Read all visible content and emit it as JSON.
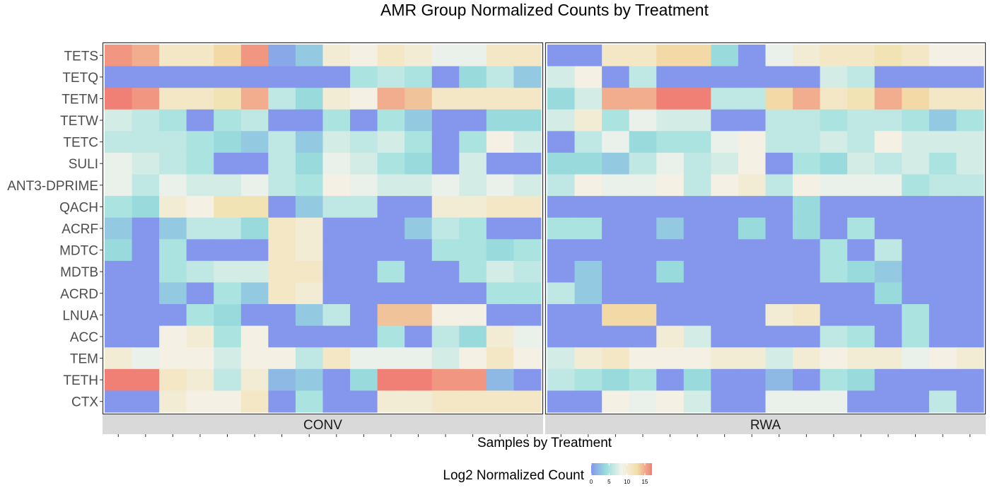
{
  "chart_data": {
    "type": "heatmap",
    "title": "AMR Group Normalized Counts by Treatment",
    "xlabel": "Samples by Treatment",
    "ylabel": "",
    "legend": {
      "title": "Log2 Normalized Count",
      "ticks": [
        0,
        5,
        10,
        15
      ],
      "range": [
        0,
        17
      ],
      "colors": [
        "#8497EC",
        "#9ADFDC",
        "#F4F3EC",
        "#F2DFA9",
        "#F08075"
      ],
      "placement": "bottom"
    },
    "facets": [
      {
        "name": "CONV",
        "columns": 16,
        "rows": [
          "TETS",
          "TETQ",
          "TETM",
          "TETW",
          "TETC",
          "SULI",
          "ANT3-DPRIME",
          "QACH",
          "ACRF",
          "MDTC",
          "MDTB",
          "ACRD",
          "LNUA",
          "ACC",
          "TEM",
          "TETH",
          "CTX"
        ],
        "values": [
          [
            16,
            15,
            11,
            11,
            13,
            16,
            1,
            3,
            10,
            9,
            11,
            10,
            8,
            8,
            11,
            11
          ],
          [
            0,
            0,
            0,
            0,
            0,
            0,
            0,
            0,
            0,
            5,
            6,
            5,
            0,
            4,
            6,
            3
          ],
          [
            17,
            16,
            11,
            11,
            12,
            15,
            6,
            4,
            10,
            9,
            15,
            14,
            11,
            11,
            11,
            11
          ],
          [
            7,
            6,
            5,
            0,
            5,
            6,
            0,
            0,
            5,
            0,
            5,
            3,
            0,
            0,
            4,
            4
          ],
          [
            6,
            6,
            6,
            5,
            4,
            3,
            6,
            3,
            7,
            6,
            7,
            5,
            0,
            5,
            9,
            7
          ],
          [
            8,
            7,
            6,
            5,
            0,
            0,
            6,
            4,
            8,
            7,
            5,
            4,
            0,
            7,
            0,
            0
          ],
          [
            8,
            6,
            8,
            7,
            7,
            8,
            6,
            5,
            9,
            8,
            7,
            7,
            8,
            7,
            8,
            7
          ],
          [
            5,
            4,
            10,
            9,
            12,
            12,
            0,
            3,
            6,
            6,
            0,
            0,
            10,
            10,
            11,
            11
          ],
          [
            3,
            0,
            3,
            6,
            6,
            4,
            11,
            10,
            0,
            0,
            0,
            3,
            6,
            5,
            0,
            0
          ],
          [
            4,
            0,
            5,
            0,
            0,
            0,
            11,
            10,
            0,
            0,
            0,
            0,
            5,
            5,
            4,
            5
          ],
          [
            0,
            0,
            5,
            6,
            7,
            7,
            11,
            11,
            0,
            0,
            5,
            0,
            0,
            5,
            7,
            6
          ],
          [
            0,
            0,
            3,
            0,
            5,
            3,
            11,
            10,
            0,
            0,
            0,
            0,
            0,
            0,
            5,
            5
          ],
          [
            0,
            0,
            0,
            5,
            4,
            0,
            0,
            3,
            6,
            0,
            14,
            14,
            9,
            9,
            0,
            0
          ],
          [
            0,
            0,
            9,
            10,
            5,
            9,
            0,
            0,
            0,
            0,
            5,
            0,
            6,
            4,
            10,
            8
          ],
          [
            10,
            8,
            9,
            9,
            7,
            9,
            9,
            6,
            11,
            8,
            8,
            8,
            7,
            9,
            11,
            9
          ],
          [
            17,
            17,
            11,
            10,
            6,
            10,
            2,
            3,
            0,
            4,
            17,
            17,
            16,
            16,
            2,
            0
          ],
          [
            0,
            0,
            10,
            9,
            9,
            11,
            0,
            5,
            0,
            0,
            10,
            10,
            11,
            11,
            11,
            11
          ]
        ]
      },
      {
        "name": "RWA",
        "columns": 16,
        "rows": [
          "TETS",
          "TETQ",
          "TETM",
          "TETW",
          "TETC",
          "SULI",
          "ANT3-DPRIME",
          "QACH",
          "ACRF",
          "MDTC",
          "MDTB",
          "ACRD",
          "LNUA",
          "ACC",
          "TEM",
          "TETH",
          "CTX"
        ],
        "values": [
          [
            0,
            0,
            11,
            11,
            13,
            13,
            4,
            0,
            8,
            10,
            11,
            11,
            12,
            11,
            9,
            9
          ],
          [
            7,
            9,
            0,
            6,
            0,
            0,
            0,
            0,
            0,
            0,
            7,
            6,
            0,
            0,
            0,
            0
          ],
          [
            4,
            7,
            15,
            15,
            17,
            17,
            6,
            6,
            13,
            15,
            11,
            12,
            15,
            13,
            11,
            11
          ],
          [
            7,
            10,
            5,
            8,
            7,
            7,
            0,
            0,
            6,
            6,
            5,
            6,
            6,
            5,
            3,
            5
          ],
          [
            0,
            6,
            8,
            4,
            5,
            5,
            8,
            9,
            6,
            6,
            7,
            6,
            9,
            7,
            7,
            7
          ],
          [
            4,
            4,
            3,
            6,
            8,
            6,
            7,
            9,
            0,
            5,
            4,
            7,
            6,
            7,
            5,
            7
          ],
          [
            6,
            9,
            8,
            8,
            9,
            6,
            9,
            10,
            6,
            9,
            8,
            8,
            8,
            5,
            6,
            6
          ],
          [
            0,
            0,
            0,
            0,
            0,
            0,
            0,
            0,
            0,
            4,
            0,
            0,
            0,
            0,
            0,
            0
          ],
          [
            5,
            5,
            0,
            0,
            3,
            0,
            0,
            4,
            0,
            4,
            0,
            5,
            0,
            0,
            0,
            0
          ],
          [
            0,
            0,
            0,
            0,
            0,
            0,
            0,
            0,
            0,
            0,
            5,
            0,
            6,
            0,
            0,
            0
          ],
          [
            0,
            3,
            0,
            0,
            4,
            0,
            0,
            0,
            0,
            0,
            5,
            4,
            3,
            0,
            0,
            0
          ],
          [
            6,
            3,
            0,
            0,
            0,
            0,
            0,
            0,
            0,
            0,
            0,
            0,
            4,
            0,
            0,
            0
          ],
          [
            0,
            0,
            13,
            13,
            0,
            0,
            0,
            0,
            10,
            11,
            0,
            0,
            0,
            5,
            0,
            0
          ],
          [
            0,
            0,
            0,
            0,
            10,
            7,
            0,
            0,
            0,
            0,
            6,
            5,
            0,
            5,
            0,
            0
          ],
          [
            7,
            10,
            11,
            9,
            9,
            9,
            10,
            10,
            7,
            10,
            9,
            10,
            10,
            8,
            9,
            10
          ],
          [
            6,
            5,
            4,
            5,
            0,
            4,
            0,
            0,
            2,
            0,
            5,
            4,
            0,
            0,
            0,
            0
          ],
          [
            0,
            0,
            9,
            8,
            9,
            7,
            0,
            0,
            8,
            8,
            8,
            0,
            0,
            0,
            6,
            0
          ]
        ]
      }
    ]
  }
}
